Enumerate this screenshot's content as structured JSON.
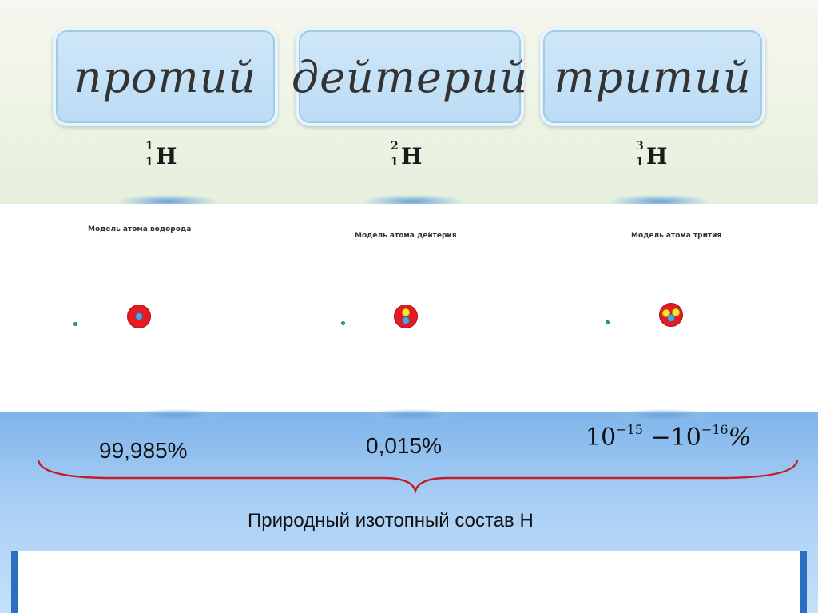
{
  "isotopes": [
    {
      "name": "протий",
      "symbol": "H",
      "mass_number": "1",
      "atomic_number": "1",
      "model_title": "Модель атома водорода",
      "abundance": "99,985%"
    },
    {
      "name": "дейтерий",
      "symbol": "H",
      "mass_number": "2",
      "atomic_number": "1",
      "model_title": "Модель  атома дейтерия",
      "abundance": "0,015%"
    },
    {
      "name": "тритий",
      "symbol": "H",
      "mass_number": "3",
      "atomic_number": "1",
      "model_title": "Модель атома трития"
    }
  ],
  "tritium_abundance": {
    "base1": "10",
    "exp1": "−15",
    "dash": " −",
    "base2": "10",
    "exp2": "−16",
    "unit": "%"
  },
  "caption": "Природный изотопный состав Н",
  "colors": {
    "nucleus": "#e41b23",
    "proton": "#5aa1d9",
    "neutron": "#f3e62e",
    "electron": "#33b24a",
    "brace": "#c41e2a"
  }
}
